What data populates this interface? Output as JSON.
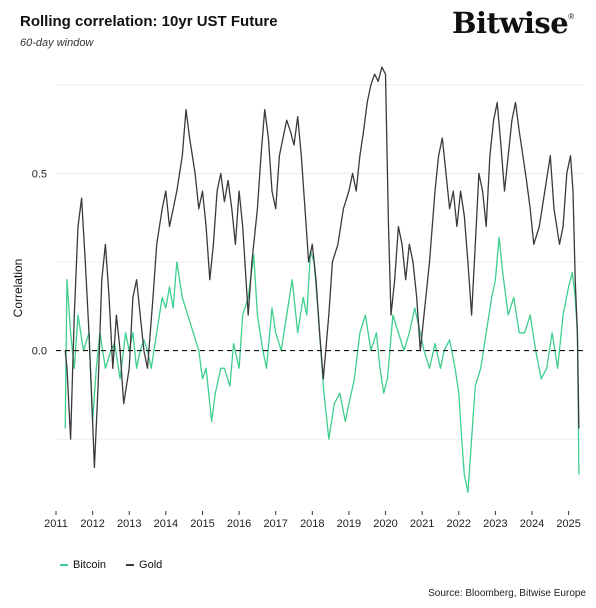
{
  "header": {
    "title": "Rolling correlation: 10yr UST Future",
    "subtitle": "60-day window",
    "logo_text": "Bitwise",
    "logo_mark": "®"
  },
  "footer": {
    "source": "Source: Bloomberg, Bitwise Europe"
  },
  "colors": {
    "bitcoin": "#3ecf8e",
    "gold": "#3a3a3a",
    "zero_line": "#111111",
    "grid": "#ececec"
  },
  "chart_data": {
    "type": "line",
    "title": "Rolling correlation: 10yr UST Future",
    "subtitle": "60-day window",
    "xlabel": "",
    "ylabel": "Correlation",
    "xlim": [
      2011.0,
      2025.42
    ],
    "ylim": [
      -0.45,
      0.82
    ],
    "x_ticks": [
      2011,
      2012,
      2013,
      2014,
      2015,
      2016,
      2017,
      2018,
      2019,
      2020,
      2021,
      2022,
      2023,
      2024,
      2025
    ],
    "y_ticks": [
      0.0,
      0.5
    ],
    "y_tick_labels": [
      "0.0",
      "0.5"
    ],
    "reference_line": {
      "y": 0.0,
      "style": "dashed"
    },
    "grid": true,
    "legend": {
      "position": "bottom-left",
      "entries": [
        "Bitcoin",
        "Gold"
      ]
    },
    "series": [
      {
        "name": "Bitcoin",
        "color": "#3ecf8e",
        "points": [
          [
            2011.25,
            -0.22
          ],
          [
            2011.3,
            0.2
          ],
          [
            2011.4,
            0.05
          ],
          [
            2011.5,
            -0.05
          ],
          [
            2011.6,
            0.1
          ],
          [
            2011.75,
            0.0
          ],
          [
            2011.9,
            0.05
          ],
          [
            2012.0,
            -0.2
          ],
          [
            2012.1,
            -0.05
          ],
          [
            2012.2,
            0.05
          ],
          [
            2012.35,
            -0.05
          ],
          [
            2012.5,
            0.0
          ],
          [
            2012.6,
            0.02
          ],
          [
            2012.75,
            -0.08
          ],
          [
            2012.9,
            0.05
          ],
          [
            2013.0,
            0.0
          ],
          [
            2013.1,
            0.05
          ],
          [
            2013.2,
            -0.05
          ],
          [
            2013.3,
            0.0
          ],
          [
            2013.4,
            0.03
          ],
          [
            2013.5,
            0.0
          ],
          [
            2013.6,
            -0.05
          ],
          [
            2013.75,
            0.05
          ],
          [
            2013.9,
            0.15
          ],
          [
            2014.0,
            0.12
          ],
          [
            2014.1,
            0.18
          ],
          [
            2014.2,
            0.12
          ],
          [
            2014.3,
            0.25
          ],
          [
            2014.45,
            0.15
          ],
          [
            2014.6,
            0.1
          ],
          [
            2014.75,
            0.05
          ],
          [
            2014.9,
            0.0
          ],
          [
            2015.0,
            -0.08
          ],
          [
            2015.1,
            -0.05
          ],
          [
            2015.25,
            -0.2
          ],
          [
            2015.35,
            -0.12
          ],
          [
            2015.5,
            -0.05
          ],
          [
            2015.6,
            -0.05
          ],
          [
            2015.75,
            -0.1
          ],
          [
            2015.85,
            0.02
          ],
          [
            2016.0,
            -0.05
          ],
          [
            2016.1,
            0.1
          ],
          [
            2016.25,
            0.15
          ],
          [
            2016.4,
            0.27
          ],
          [
            2016.5,
            0.1
          ],
          [
            2016.65,
            0.0
          ],
          [
            2016.75,
            -0.05
          ],
          [
            2016.9,
            0.12
          ],
          [
            2017.0,
            0.05
          ],
          [
            2017.15,
            0.0
          ],
          [
            2017.3,
            0.1
          ],
          [
            2017.45,
            0.2
          ],
          [
            2017.6,
            0.05
          ],
          [
            2017.75,
            0.15
          ],
          [
            2017.85,
            0.1
          ],
          [
            2017.95,
            0.28
          ],
          [
            2018.05,
            0.25
          ],
          [
            2018.15,
            0.12
          ],
          [
            2018.3,
            -0.1
          ],
          [
            2018.45,
            -0.25
          ],
          [
            2018.6,
            -0.15
          ],
          [
            2018.75,
            -0.12
          ],
          [
            2018.9,
            -0.2
          ],
          [
            2019.0,
            -0.15
          ],
          [
            2019.15,
            -0.08
          ],
          [
            2019.3,
            0.05
          ],
          [
            2019.45,
            0.1
          ],
          [
            2019.6,
            0.0
          ],
          [
            2019.75,
            0.05
          ],
          [
            2019.85,
            -0.05
          ],
          [
            2019.95,
            -0.12
          ],
          [
            2020.05,
            -0.08
          ],
          [
            2020.2,
            0.1
          ],
          [
            2020.35,
            0.05
          ],
          [
            2020.5,
            0.0
          ],
          [
            2020.65,
            0.05
          ],
          [
            2020.8,
            0.12
          ],
          [
            2020.95,
            0.05
          ],
          [
            2021.05,
            0.0
          ],
          [
            2021.2,
            -0.05
          ],
          [
            2021.35,
            0.02
          ],
          [
            2021.5,
            -0.05
          ],
          [
            2021.6,
            0.0
          ],
          [
            2021.75,
            0.03
          ],
          [
            2021.9,
            -0.05
          ],
          [
            2022.0,
            -0.12
          ],
          [
            2022.08,
            -0.25
          ],
          [
            2022.15,
            -0.35
          ],
          [
            2022.25,
            -0.4
          ],
          [
            2022.35,
            -0.25
          ],
          [
            2022.45,
            -0.1
          ],
          [
            2022.6,
            -0.05
          ],
          [
            2022.75,
            0.05
          ],
          [
            2022.9,
            0.15
          ],
          [
            2023.0,
            0.2
          ],
          [
            2023.1,
            0.32
          ],
          [
            2023.2,
            0.22
          ],
          [
            2023.35,
            0.1
          ],
          [
            2023.5,
            0.15
          ],
          [
            2023.65,
            0.05
          ],
          [
            2023.8,
            0.05
          ],
          [
            2023.95,
            0.1
          ],
          [
            2024.1,
            0.0
          ],
          [
            2024.25,
            -0.08
          ],
          [
            2024.4,
            -0.05
          ],
          [
            2024.55,
            0.05
          ],
          [
            2024.7,
            -0.05
          ],
          [
            2024.85,
            0.1
          ],
          [
            2025.0,
            0.18
          ],
          [
            2025.1,
            0.22
          ],
          [
            2025.18,
            0.15
          ],
          [
            2025.24,
            0.05
          ],
          [
            2025.28,
            -0.35
          ]
        ]
      },
      {
        "name": "Gold",
        "color": "#3a3a3a",
        "points": [
          [
            2011.25,
            0.0
          ],
          [
            2011.3,
            -0.05
          ],
          [
            2011.4,
            -0.25
          ],
          [
            2011.5,
            0.1
          ],
          [
            2011.6,
            0.35
          ],
          [
            2011.7,
            0.43
          ],
          [
            2011.8,
            0.25
          ],
          [
            2011.9,
            0.05
          ],
          [
            2012.0,
            -0.2
          ],
          [
            2012.05,
            -0.33
          ],
          [
            2012.15,
            -0.1
          ],
          [
            2012.25,
            0.2
          ],
          [
            2012.35,
            0.3
          ],
          [
            2012.45,
            0.15
          ],
          [
            2012.55,
            -0.05
          ],
          [
            2012.65,
            0.1
          ],
          [
            2012.75,
            0.0
          ],
          [
            2012.85,
            -0.15
          ],
          [
            2013.0,
            -0.05
          ],
          [
            2013.1,
            0.15
          ],
          [
            2013.2,
            0.2
          ],
          [
            2013.3,
            0.1
          ],
          [
            2013.4,
            0.0
          ],
          [
            2013.5,
            -0.05
          ],
          [
            2013.65,
            0.15
          ],
          [
            2013.75,
            0.3
          ],
          [
            2013.9,
            0.4
          ],
          [
            2014.0,
            0.45
          ],
          [
            2014.1,
            0.35
          ],
          [
            2014.2,
            0.4
          ],
          [
            2014.3,
            0.45
          ],
          [
            2014.45,
            0.55
          ],
          [
            2014.55,
            0.68
          ],
          [
            2014.65,
            0.6
          ],
          [
            2014.8,
            0.5
          ],
          [
            2014.9,
            0.4
          ],
          [
            2015.0,
            0.45
          ],
          [
            2015.1,
            0.35
          ],
          [
            2015.2,
            0.2
          ],
          [
            2015.3,
            0.3
          ],
          [
            2015.4,
            0.45
          ],
          [
            2015.5,
            0.5
          ],
          [
            2015.6,
            0.42
          ],
          [
            2015.7,
            0.48
          ],
          [
            2015.8,
            0.4
          ],
          [
            2015.9,
            0.3
          ],
          [
            2016.0,
            0.45
          ],
          [
            2016.1,
            0.35
          ],
          [
            2016.25,
            0.1
          ],
          [
            2016.35,
            0.25
          ],
          [
            2016.5,
            0.4
          ],
          [
            2016.6,
            0.55
          ],
          [
            2016.7,
            0.68
          ],
          [
            2016.8,
            0.6
          ],
          [
            2016.9,
            0.45
          ],
          [
            2017.0,
            0.4
          ],
          [
            2017.1,
            0.55
          ],
          [
            2017.2,
            0.6
          ],
          [
            2017.3,
            0.65
          ],
          [
            2017.4,
            0.62
          ],
          [
            2017.5,
            0.58
          ],
          [
            2017.6,
            0.66
          ],
          [
            2017.7,
            0.55
          ],
          [
            2017.8,
            0.4
          ],
          [
            2017.9,
            0.25
          ],
          [
            2018.0,
            0.3
          ],
          [
            2018.1,
            0.2
          ],
          [
            2018.2,
            0.05
          ],
          [
            2018.3,
            -0.08
          ],
          [
            2018.45,
            0.1
          ],
          [
            2018.55,
            0.25
          ],
          [
            2018.7,
            0.3
          ],
          [
            2018.85,
            0.4
          ],
          [
            2019.0,
            0.45
          ],
          [
            2019.1,
            0.5
          ],
          [
            2019.2,
            0.45
          ],
          [
            2019.3,
            0.55
          ],
          [
            2019.4,
            0.62
          ],
          [
            2019.5,
            0.7
          ],
          [
            2019.6,
            0.75
          ],
          [
            2019.7,
            0.78
          ],
          [
            2019.8,
            0.76
          ],
          [
            2019.9,
            0.8
          ],
          [
            2020.0,
            0.78
          ],
          [
            2020.08,
            0.35
          ],
          [
            2020.15,
            0.1
          ],
          [
            2020.25,
            0.2
          ],
          [
            2020.35,
            0.35
          ],
          [
            2020.45,
            0.3
          ],
          [
            2020.55,
            0.2
          ],
          [
            2020.65,
            0.3
          ],
          [
            2020.75,
            0.25
          ],
          [
            2020.85,
            0.15
          ],
          [
            2020.95,
            0.0
          ],
          [
            2021.05,
            0.1
          ],
          [
            2021.2,
            0.25
          ],
          [
            2021.35,
            0.45
          ],
          [
            2021.45,
            0.55
          ],
          [
            2021.55,
            0.6
          ],
          [
            2021.65,
            0.5
          ],
          [
            2021.75,
            0.4
          ],
          [
            2021.85,
            0.45
          ],
          [
            2021.95,
            0.35
          ],
          [
            2022.05,
            0.45
          ],
          [
            2022.15,
            0.38
          ],
          [
            2022.25,
            0.25
          ],
          [
            2022.35,
            0.1
          ],
          [
            2022.45,
            0.3
          ],
          [
            2022.55,
            0.5
          ],
          [
            2022.65,
            0.45
          ],
          [
            2022.75,
            0.35
          ],
          [
            2022.85,
            0.55
          ],
          [
            2022.95,
            0.65
          ],
          [
            2023.05,
            0.7
          ],
          [
            2023.15,
            0.58
          ],
          [
            2023.25,
            0.45
          ],
          [
            2023.35,
            0.55
          ],
          [
            2023.45,
            0.65
          ],
          [
            2023.55,
            0.7
          ],
          [
            2023.65,
            0.62
          ],
          [
            2023.75,
            0.55
          ],
          [
            2023.85,
            0.48
          ],
          [
            2023.95,
            0.4
          ],
          [
            2024.05,
            0.3
          ],
          [
            2024.2,
            0.35
          ],
          [
            2024.35,
            0.45
          ],
          [
            2024.5,
            0.55
          ],
          [
            2024.6,
            0.4
          ],
          [
            2024.75,
            0.3
          ],
          [
            2024.85,
            0.35
          ],
          [
            2024.95,
            0.5
          ],
          [
            2025.05,
            0.55
          ],
          [
            2025.12,
            0.45
          ],
          [
            2025.18,
            0.2
          ],
          [
            2025.24,
            0.05
          ],
          [
            2025.28,
            -0.22
          ]
        ]
      }
    ]
  },
  "legend": {
    "bitcoin_label": "Bitcoin",
    "gold_label": "Gold"
  }
}
